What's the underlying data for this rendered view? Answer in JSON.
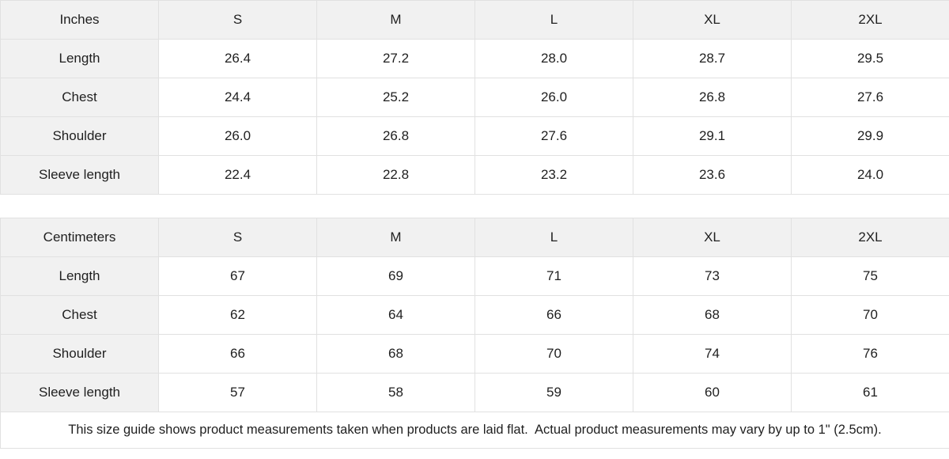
{
  "colors": {
    "header_bg": "#f1f1f1",
    "border": "#e1e1e1",
    "text": "#1f1f1f",
    "background": "#ffffff"
  },
  "tables": [
    {
      "unit_label": "Inches",
      "columns": [
        "S",
        "M",
        "L",
        "XL",
        "2XL"
      ],
      "rows": [
        {
          "label": "Length",
          "values": [
            "26.4",
            "27.2",
            "28.0",
            "28.7",
            "29.5"
          ]
        },
        {
          "label": "Chest",
          "values": [
            "24.4",
            "25.2",
            "26.0",
            "26.8",
            "27.6"
          ]
        },
        {
          "label": "Shoulder",
          "values": [
            "26.0",
            "26.8",
            "27.6",
            "29.1",
            "29.9"
          ]
        },
        {
          "label": "Sleeve length",
          "values": [
            "22.4",
            "22.8",
            "23.2",
            "23.6",
            "24.0"
          ]
        }
      ]
    },
    {
      "unit_label": "Centimeters",
      "columns": [
        "S",
        "M",
        "L",
        "XL",
        "2XL"
      ],
      "rows": [
        {
          "label": "Length",
          "values": [
            "67",
            "69",
            "71",
            "73",
            "75"
          ]
        },
        {
          "label": "Chest",
          "values": [
            "62",
            "64",
            "66",
            "68",
            "70"
          ]
        },
        {
          "label": "Shoulder",
          "values": [
            "66",
            "68",
            "70",
            "74",
            "76"
          ]
        },
        {
          "label": "Sleeve length",
          "values": [
            "57",
            "58",
            "59",
            "60",
            "61"
          ]
        }
      ]
    }
  ],
  "footer": {
    "note": "This size guide shows product measurements taken when products are laid flat.  Actual product measurements may vary by up to 1\" (2.5cm)."
  }
}
